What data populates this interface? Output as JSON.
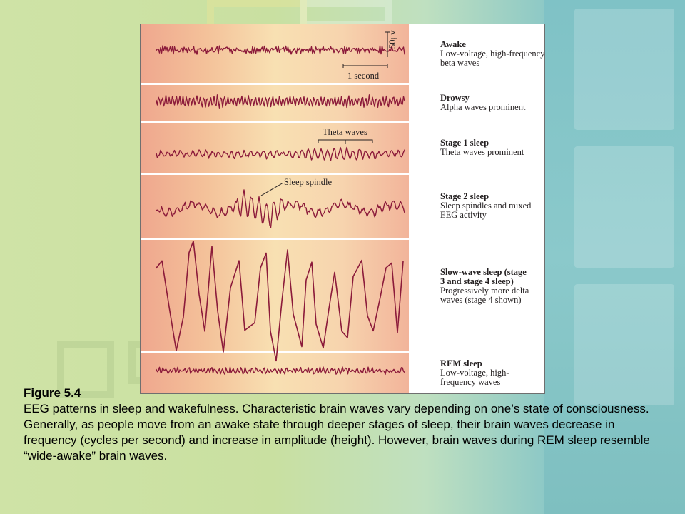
{
  "stages": [
    {
      "title": "Awake",
      "desc": "Low-voltage, high-frequency beta waves"
    },
    {
      "title": "Drowsy",
      "desc": "Alpha waves prominent"
    },
    {
      "title": "Stage 1 sleep",
      "desc": "Theta waves prominent"
    },
    {
      "title": "Stage 2 sleep",
      "desc": "Sleep spindles and mixed EEG activity"
    },
    {
      "title": "Slow-wave sleep (stage 3 and stage 4 sleep)",
      "desc": "Progressively more delta waves (stage 4 shown)"
    },
    {
      "title": "REM sleep",
      "desc": "Low-voltage, high-frequency waves"
    }
  ],
  "annotations": {
    "scale_time": "1 second",
    "scale_voltage": "50μv",
    "theta": "Theta waves",
    "spindle": "Sleep spindle"
  },
  "caption": {
    "title": "Figure 5.4",
    "text": "EEG patterns in sleep and wakefulness. Characteristic brain waves vary depending on one’s state of consciousness. Generally, as people move from an awake state through deeper stages of sleep, their brain waves decrease in frequency (cycles per second) and increase in amplitude (height). However, brain waves during REM sleep resemble “wide-awake” brain waves."
  },
  "colors": {
    "wave": "#8b1a3a",
    "band_left": "#efa78e",
    "band_mid": "#f8e0b2"
  }
}
